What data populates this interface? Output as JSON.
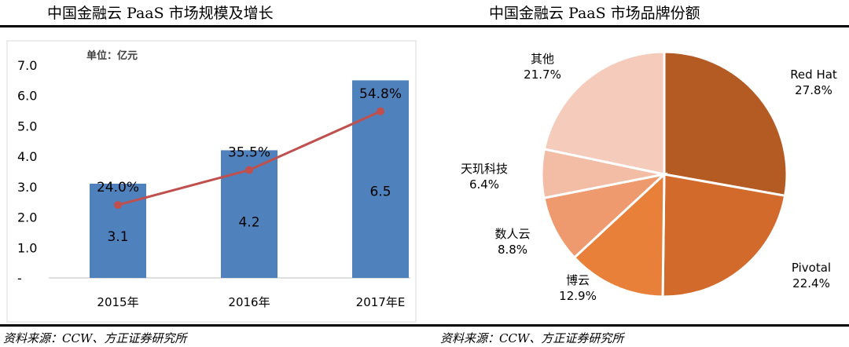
{
  "left": {
    "title": "中国金融云 PaaS 市场规模及增长",
    "source": "资料来源：CCW、方正证券研究所"
  },
  "right": {
    "title": "中国金融云 PaaS 市场品牌份额",
    "source": "资料来源：CCW、方正证券研究所"
  },
  "colors": {
    "bar": "#4f81bd",
    "line": "#c0504d",
    "red_hat": "#b45a23",
    "pivotal": "#d16a2b",
    "boyun": "#e8803a",
    "shuren": "#ee9a6e",
    "tianxun": "#f3bca4",
    "other": "#f5cbbb"
  },
  "chart_data": [
    {
      "type": "bar",
      "unit_label": "单位：亿元",
      "categories": [
        "2015年",
        "2016年",
        "2017年E"
      ],
      "series": [
        {
          "values": [
            3.1,
            4.2,
            6.5
          ]
        },
        {
          "values": [
            24.0,
            35.5,
            54.8
          ],
          "labels": [
            "24.0%",
            "35.5%",
            "54.8%"
          ]
        }
      ],
      "y_ticks": [
        "7.0",
        "6.0",
        "5.0",
        "4.0",
        "3.0",
        "2.0",
        "1.0",
        "-"
      ],
      "ylim": [
        0,
        7
      ]
    },
    {
      "type": "pie",
      "slices": [
        {
          "label": "Red Hat",
          "value": 27.8,
          "pct": "27.8%"
        },
        {
          "label": "Pivotal",
          "value": 22.4,
          "pct": "22.4%"
        },
        {
          "label": "博云",
          "value": 12.9,
          "pct": "12.9%"
        },
        {
          "label": "数人云",
          "value": 8.8,
          "pct": "8.8%"
        },
        {
          "label": "天玑科技",
          "value": 6.4,
          "pct": "6.4%"
        },
        {
          "label": "其他",
          "value": 21.7,
          "pct": "21.7%"
        }
      ]
    }
  ]
}
